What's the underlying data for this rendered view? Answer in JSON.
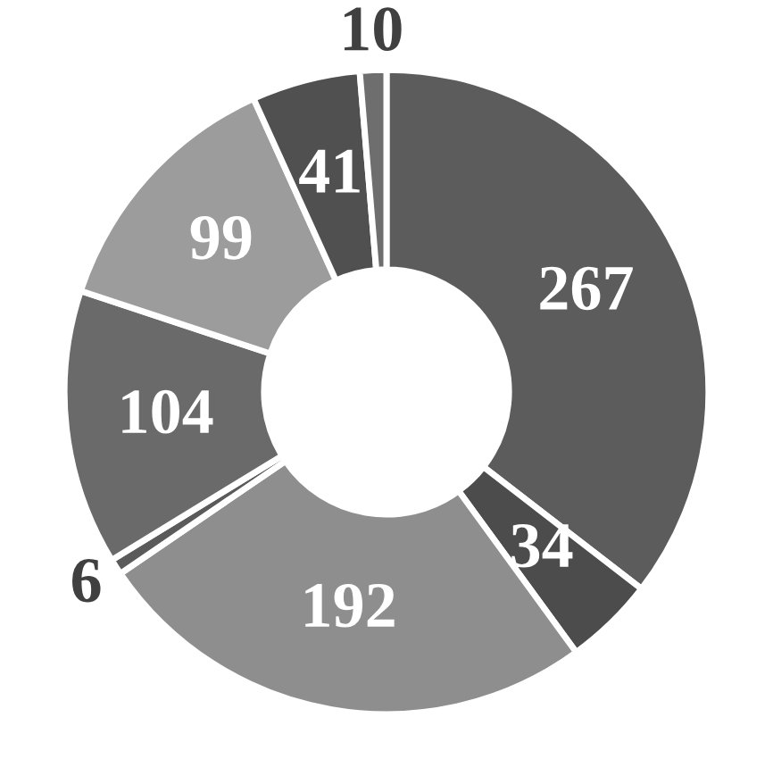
{
  "chart_data": {
    "type": "donut",
    "categories": [
      null,
      null,
      null,
      null,
      null,
      null,
      null,
      null
    ],
    "values": [
      267,
      34,
      192,
      6,
      104,
      99,
      41,
      10
    ],
    "colors": [
      "#5c5c5c",
      "#4c4c4c",
      "#8e8e8e",
      "#5a5a5a",
      "#6a6a6a",
      "#9c9c9c",
      "#505050",
      "#6e6e6e"
    ],
    "data_labels": true
  }
}
